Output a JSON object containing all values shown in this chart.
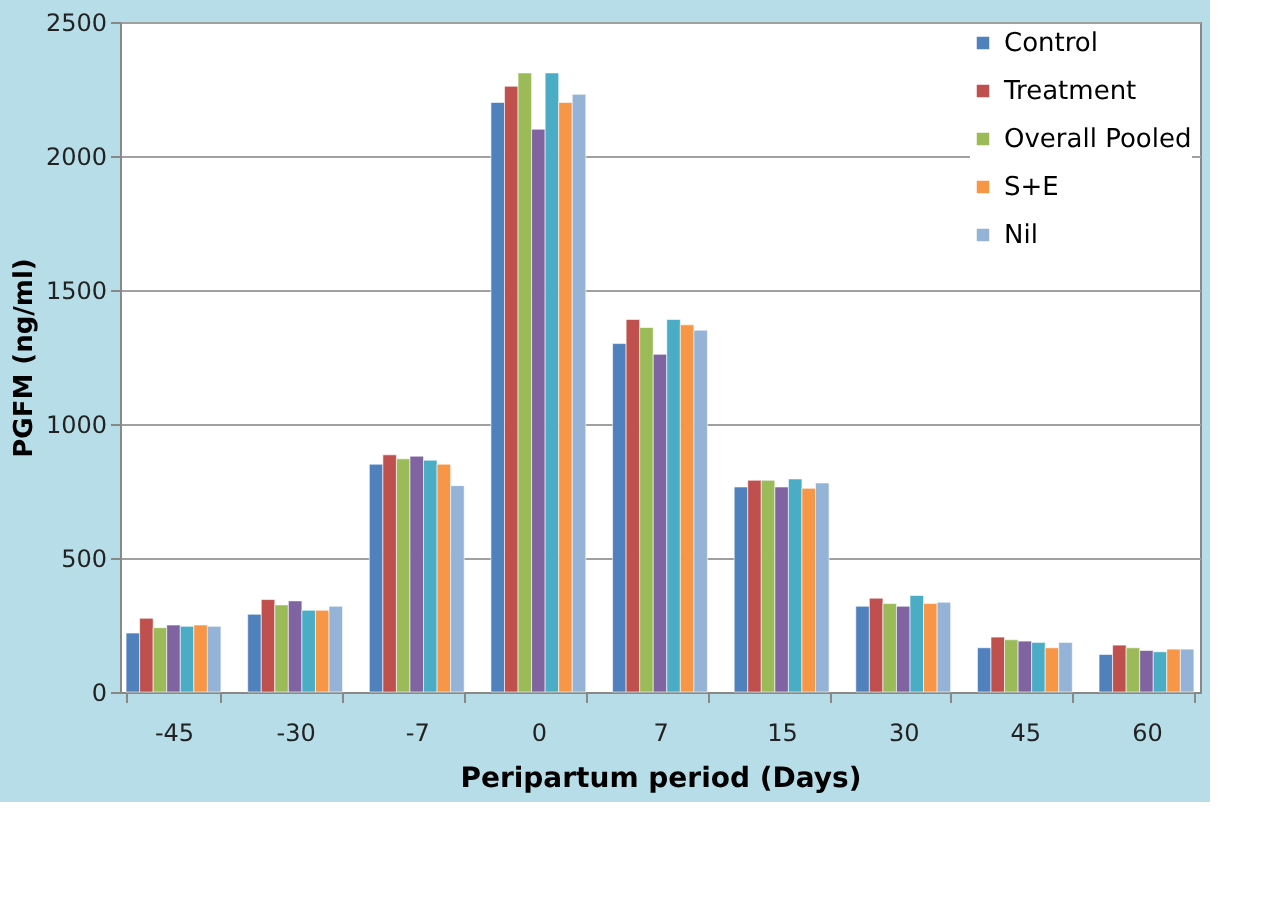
{
  "chart_data": {
    "type": "bar",
    "xlabel": "Peripartum period (Days)",
    "ylabel": "PGFM (ng/ml)",
    "categories": [
      "-45",
      "-30",
      "-7",
      "0",
      "7",
      "15",
      "30",
      "45",
      "60"
    ],
    "series": [
      {
        "name": "Control",
        "color": "#4f81bd",
        "values": [
          220,
          290,
          850,
          2200,
          1300,
          765,
          320,
          165,
          140
        ]
      },
      {
        "name": "Treatment",
        "color": "#c0504d",
        "values": [
          275,
          345,
          885,
          2260,
          1390,
          790,
          350,
          205,
          175
        ]
      },
      {
        "name": "Overall Pooled",
        "color": "#9bbb59",
        "values": [
          240,
          325,
          870,
          2310,
          1360,
          790,
          330,
          195,
          165
        ]
      },
      {
        "color": "#8064a2",
        "values": [
          250,
          340,
          880,
          2100,
          1260,
          765,
          320,
          190,
          155
        ]
      },
      {
        "color": "#4bacc6",
        "values": [
          245,
          305,
          865,
          2310,
          1390,
          795,
          360,
          185,
          150
        ]
      },
      {
        "name": "S+E",
        "color": "#f79646",
        "values": [
          250,
          305,
          850,
          2200,
          1370,
          760,
          330,
          165,
          160
        ]
      },
      {
        "name": "Nil",
        "color": "#95b3d7",
        "values": [
          245,
          320,
          770,
          2230,
          1350,
          780,
          335,
          185,
          160
        ]
      }
    ],
    "ylim": [
      0,
      2500
    ],
    "yticks": [
      0,
      500,
      1000,
      1500,
      2000,
      2500
    ],
    "grid": "y",
    "legend": "top right"
  }
}
